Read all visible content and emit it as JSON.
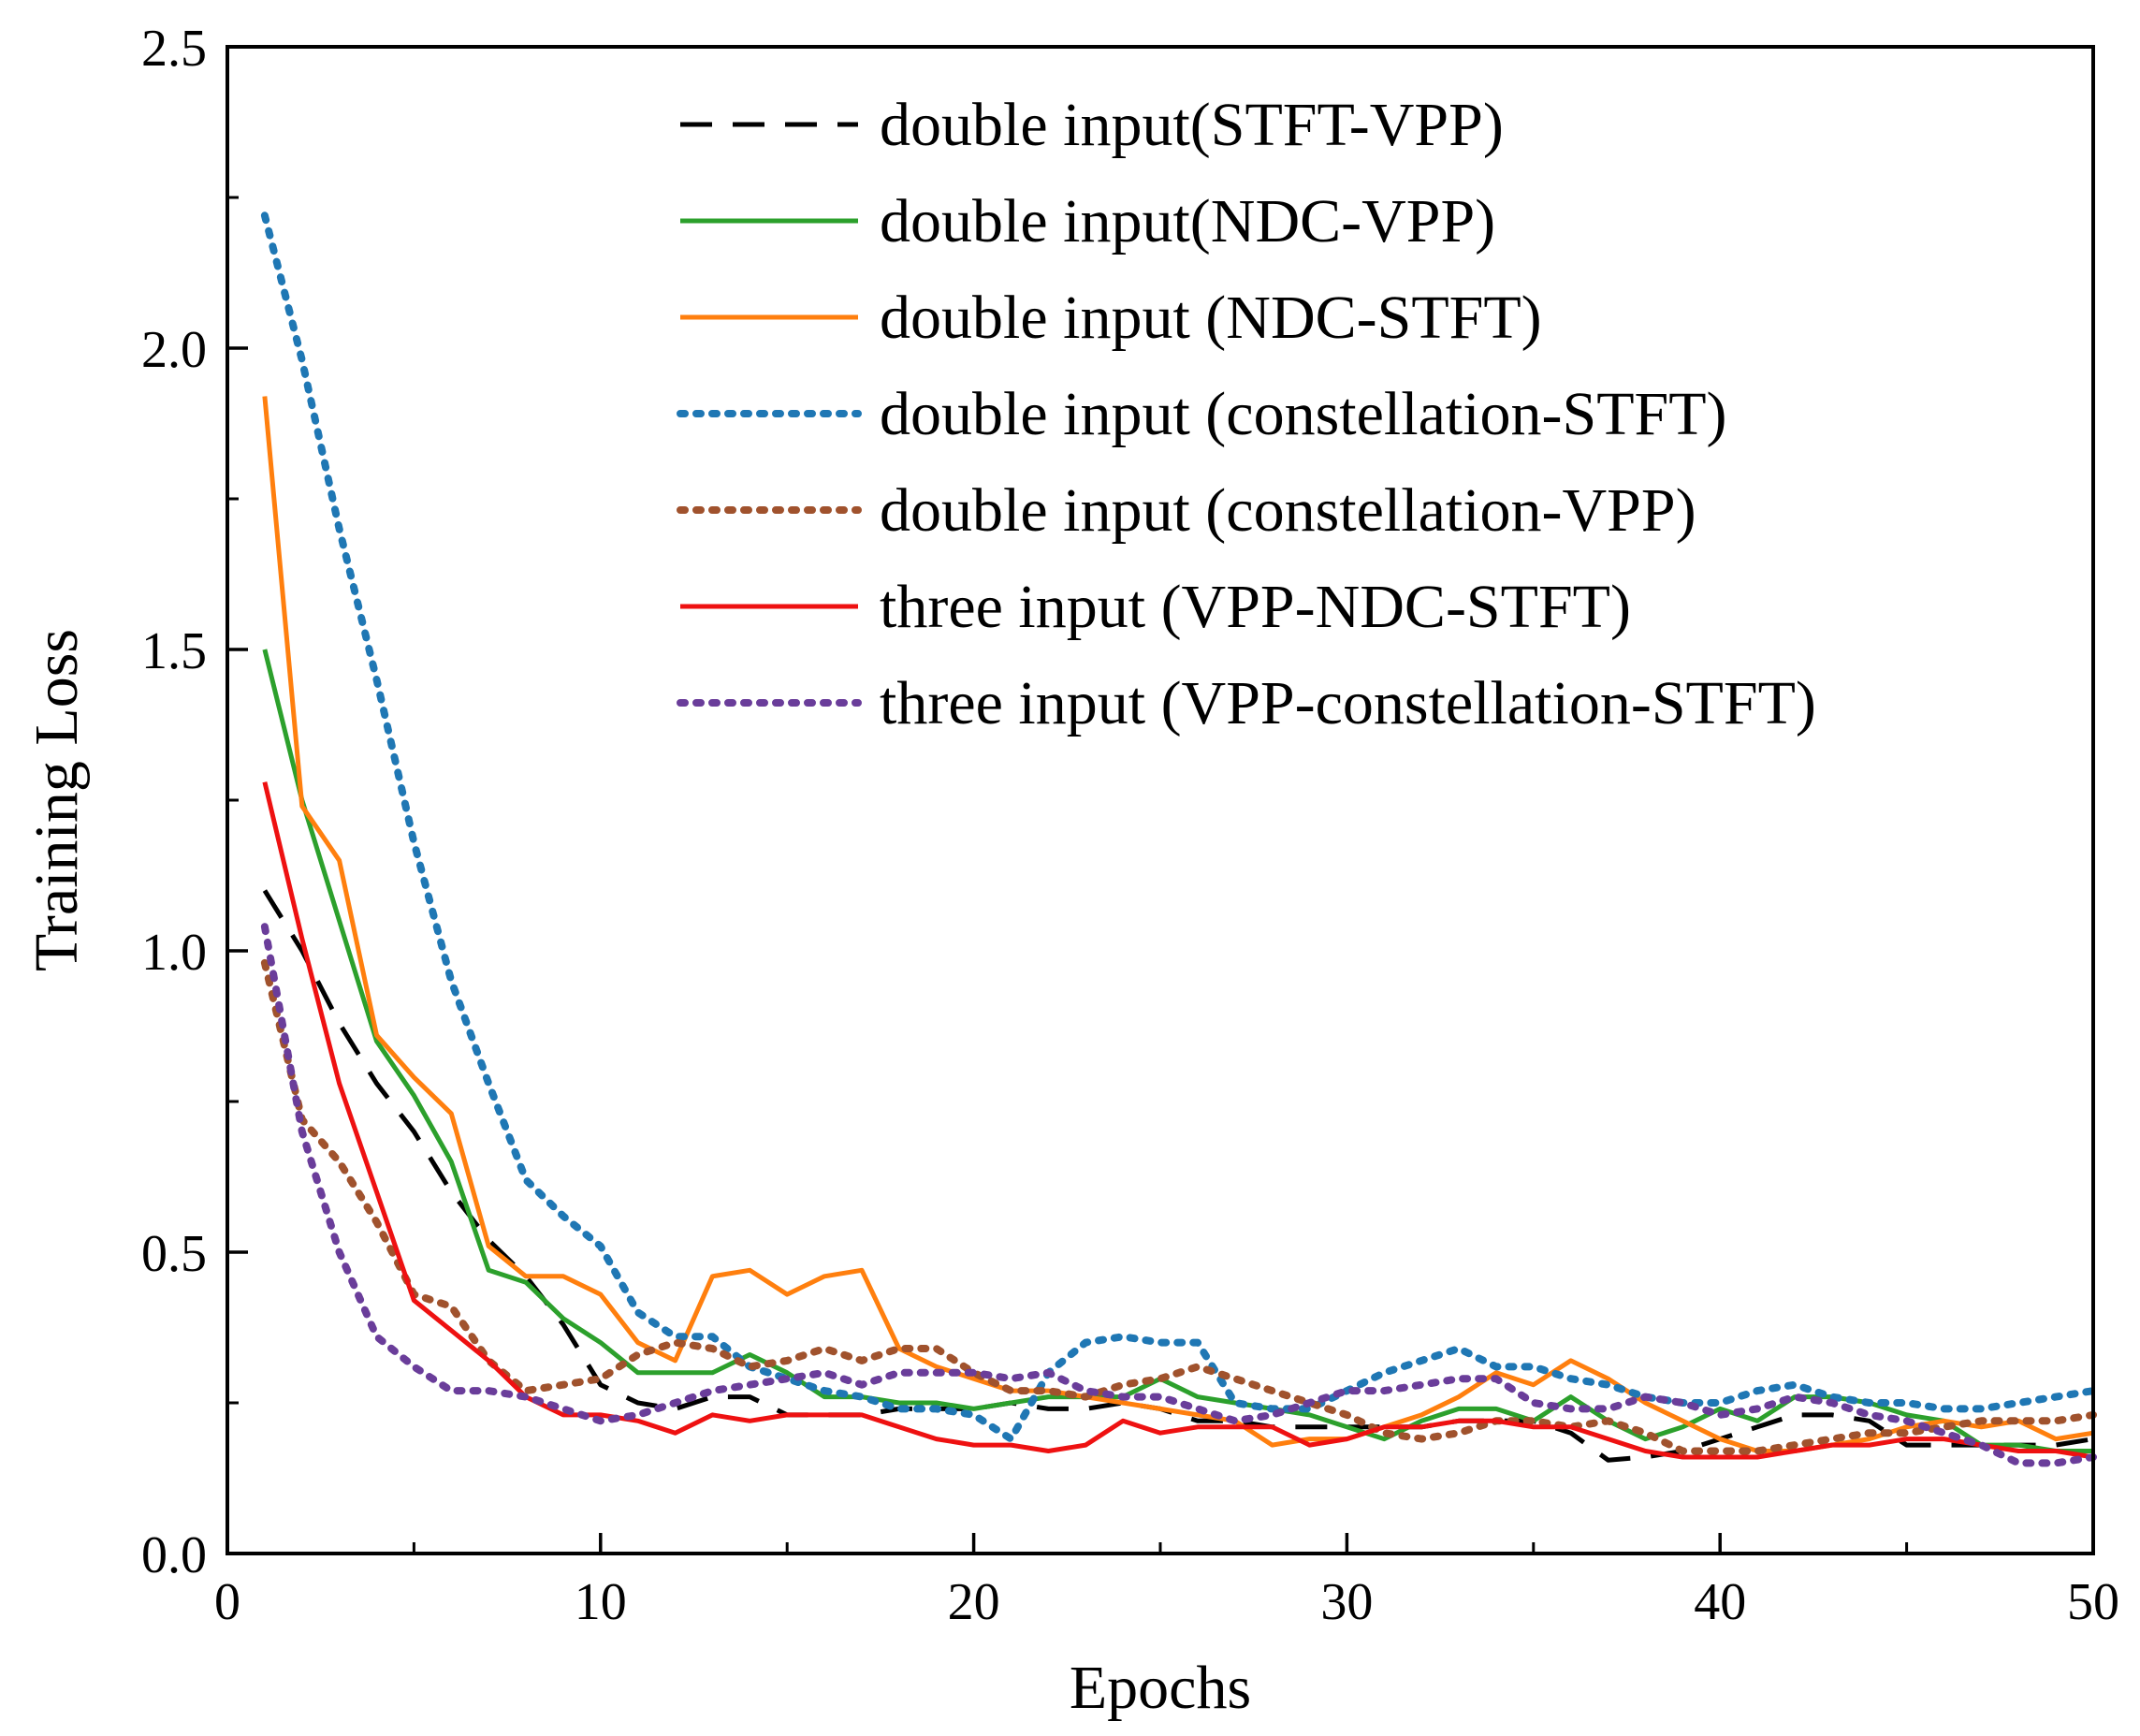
{
  "chart_data": {
    "type": "line",
    "title": "",
    "xlabel": "Epochs",
    "ylabel": "Training Loss",
    "xlim": [
      0,
      50
    ],
    "ylim": [
      0,
      2.5
    ],
    "xticks": [
      0,
      10,
      20,
      30,
      40,
      50
    ],
    "yticks": [
      0.0,
      0.5,
      1.0,
      1.5,
      2.0,
      2.5
    ],
    "xtick_labels": [
      "0",
      "10",
      "20",
      "30",
      "40",
      "50"
    ],
    "ytick_labels": [
      "0.0",
      "0.5",
      "1.0",
      "1.5",
      "2.0",
      "2.5"
    ],
    "legend_position": "top-right",
    "grid": false,
    "series": [
      {
        "name": "double input(STFT-VPP)",
        "color": "#000000",
        "style": "dashed",
        "x": [
          1,
          2,
          3,
          4,
          5,
          6,
          7,
          8,
          9,
          10,
          11,
          12,
          13,
          14,
          15,
          16,
          17,
          18,
          19,
          20,
          21,
          22,
          23,
          24,
          25,
          26,
          27,
          28,
          29,
          30,
          31,
          32,
          33,
          34,
          35,
          36,
          37,
          38,
          39,
          40,
          41,
          42,
          43,
          44,
          45,
          46,
          47,
          48,
          49,
          50
        ],
        "values": [
          1.1,
          1.0,
          0.88,
          0.78,
          0.7,
          0.6,
          0.52,
          0.46,
          0.38,
          0.28,
          0.25,
          0.24,
          0.26,
          0.26,
          0.23,
          0.23,
          0.23,
          0.24,
          0.24,
          0.24,
          0.25,
          0.24,
          0.24,
          0.25,
          0.24,
          0.22,
          0.22,
          0.21,
          0.21,
          0.21,
          0.21,
          0.21,
          0.22,
          0.22,
          0.22,
          0.2,
          0.155,
          0.16,
          0.17,
          0.19,
          0.21,
          0.23,
          0.23,
          0.22,
          0.18,
          0.18,
          0.18,
          0.18,
          0.18,
          0.19
        ]
      },
      {
        "name": "double input(NDC-VPP)",
        "color": "#2ca02c",
        "style": "solid",
        "x": [
          1,
          2,
          3,
          4,
          5,
          6,
          7,
          8,
          9,
          10,
          11,
          12,
          13,
          14,
          15,
          16,
          17,
          18,
          19,
          20,
          21,
          22,
          23,
          24,
          25,
          26,
          27,
          28,
          29,
          30,
          31,
          32,
          33,
          34,
          35,
          36,
          37,
          38,
          39,
          40,
          41,
          42,
          43,
          44,
          45,
          46,
          47,
          48,
          49,
          50
        ],
        "values": [
          1.5,
          1.25,
          1.05,
          0.85,
          0.76,
          0.65,
          0.47,
          0.45,
          0.39,
          0.35,
          0.3,
          0.3,
          0.3,
          0.33,
          0.3,
          0.26,
          0.26,
          0.25,
          0.25,
          0.24,
          0.25,
          0.26,
          0.26,
          0.26,
          0.29,
          0.26,
          0.25,
          0.24,
          0.23,
          0.21,
          0.19,
          0.22,
          0.24,
          0.24,
          0.22,
          0.26,
          0.22,
          0.19,
          0.21,
          0.24,
          0.22,
          0.26,
          0.26,
          0.25,
          0.23,
          0.22,
          0.18,
          0.18,
          0.17,
          0.17
        ]
      },
      {
        "name": "double input (NDC-STFT)",
        "color": "#ff7f0e",
        "style": "solid",
        "x": [
          1,
          2,
          3,
          4,
          5,
          6,
          7,
          8,
          9,
          10,
          11,
          12,
          13,
          14,
          15,
          16,
          17,
          18,
          19,
          20,
          21,
          22,
          23,
          24,
          25,
          26,
          27,
          28,
          29,
          30,
          31,
          32,
          33,
          34,
          35,
          36,
          37,
          38,
          39,
          40,
          41,
          42,
          43,
          44,
          45,
          46,
          47,
          48,
          49,
          50
        ],
        "values": [
          1.92,
          1.24,
          1.15,
          0.86,
          0.79,
          0.73,
          0.51,
          0.46,
          0.46,
          0.43,
          0.35,
          0.32,
          0.46,
          0.47,
          0.43,
          0.46,
          0.47,
          0.34,
          0.31,
          0.29,
          0.27,
          0.27,
          0.26,
          0.25,
          0.24,
          0.23,
          0.22,
          0.18,
          0.19,
          0.19,
          0.21,
          0.23,
          0.26,
          0.3,
          0.28,
          0.32,
          0.29,
          0.25,
          0.22,
          0.19,
          0.17,
          0.17,
          0.18,
          0.19,
          0.21,
          0.22,
          0.21,
          0.22,
          0.19,
          0.2
        ]
      },
      {
        "name": "double input (constellation-STFT)",
        "color": "#1f77b4",
        "style": "dotted",
        "x": [
          1,
          2,
          3,
          4,
          5,
          6,
          7,
          8,
          9,
          10,
          11,
          12,
          13,
          14,
          15,
          16,
          17,
          18,
          19,
          20,
          21,
          22,
          23,
          24,
          25,
          26,
          27,
          28,
          29,
          30,
          31,
          32,
          33,
          34,
          35,
          36,
          37,
          38,
          39,
          40,
          41,
          42,
          43,
          44,
          45,
          46,
          47,
          48,
          49,
          50
        ],
        "values": [
          2.22,
          1.98,
          1.7,
          1.45,
          1.18,
          0.95,
          0.78,
          0.62,
          0.56,
          0.51,
          0.4,
          0.36,
          0.36,
          0.31,
          0.29,
          0.27,
          0.26,
          0.24,
          0.24,
          0.23,
          0.19,
          0.3,
          0.35,
          0.36,
          0.35,
          0.35,
          0.25,
          0.24,
          0.24,
          0.27,
          0.3,
          0.32,
          0.34,
          0.31,
          0.31,
          0.29,
          0.28,
          0.26,
          0.25,
          0.25,
          0.27,
          0.28,
          0.26,
          0.25,
          0.25,
          0.24,
          0.24,
          0.25,
          0.26,
          0.27
        ]
      },
      {
        "name": "double input (constellation-VPP)",
        "color": "#a0522d",
        "style": "dotted",
        "x": [
          1,
          2,
          3,
          4,
          5,
          6,
          7,
          8,
          9,
          10,
          11,
          12,
          13,
          14,
          15,
          16,
          17,
          18,
          19,
          20,
          21,
          22,
          23,
          24,
          25,
          26,
          27,
          28,
          29,
          30,
          31,
          32,
          33,
          34,
          35,
          36,
          37,
          38,
          39,
          40,
          41,
          42,
          43,
          44,
          45,
          46,
          47,
          48,
          49,
          50
        ],
        "values": [
          0.98,
          0.72,
          0.65,
          0.55,
          0.43,
          0.41,
          0.32,
          0.27,
          0.28,
          0.29,
          0.33,
          0.35,
          0.34,
          0.31,
          0.32,
          0.34,
          0.32,
          0.34,
          0.34,
          0.3,
          0.27,
          0.27,
          0.26,
          0.28,
          0.29,
          0.31,
          0.29,
          0.27,
          0.25,
          0.23,
          0.2,
          0.19,
          0.2,
          0.22,
          0.22,
          0.21,
          0.22,
          0.2,
          0.17,
          0.17,
          0.17,
          0.18,
          0.19,
          0.2,
          0.2,
          0.21,
          0.22,
          0.22,
          0.22,
          0.23
        ]
      },
      {
        "name": "three input (VPP-NDC-STFT)",
        "color": "#ee1111",
        "style": "solid",
        "x": [
          1,
          2,
          3,
          4,
          5,
          6,
          7,
          8,
          9,
          10,
          11,
          12,
          13,
          14,
          15,
          16,
          17,
          18,
          19,
          20,
          21,
          22,
          23,
          24,
          25,
          26,
          27,
          28,
          29,
          30,
          31,
          32,
          33,
          34,
          35,
          36,
          37,
          38,
          39,
          40,
          41,
          42,
          43,
          44,
          45,
          46,
          47,
          48,
          49,
          50
        ],
        "values": [
          1.28,
          1.02,
          0.78,
          0.6,
          0.42,
          0.37,
          0.32,
          0.26,
          0.23,
          0.23,
          0.22,
          0.2,
          0.23,
          0.22,
          0.23,
          0.23,
          0.23,
          0.21,
          0.19,
          0.18,
          0.18,
          0.17,
          0.18,
          0.22,
          0.2,
          0.21,
          0.21,
          0.21,
          0.18,
          0.19,
          0.21,
          0.21,
          0.22,
          0.22,
          0.21,
          0.21,
          0.19,
          0.17,
          0.16,
          0.16,
          0.16,
          0.17,
          0.18,
          0.18,
          0.19,
          0.19,
          0.18,
          0.17,
          0.17,
          0.16
        ]
      },
      {
        "name": "three input (VPP-constellation-STFT)",
        "color": "#6a3d9a",
        "style": "dotted",
        "x": [
          1,
          2,
          3,
          4,
          5,
          6,
          7,
          8,
          9,
          10,
          11,
          12,
          13,
          14,
          15,
          16,
          17,
          18,
          19,
          20,
          21,
          22,
          23,
          24,
          25,
          26,
          27,
          28,
          29,
          30,
          31,
          32,
          33,
          34,
          35,
          36,
          37,
          38,
          39,
          40,
          41,
          42,
          43,
          44,
          45,
          46,
          47,
          48,
          49,
          50
        ],
        "values": [
          1.04,
          0.7,
          0.5,
          0.36,
          0.31,
          0.27,
          0.27,
          0.26,
          0.24,
          0.22,
          0.23,
          0.25,
          0.27,
          0.28,
          0.29,
          0.3,
          0.28,
          0.3,
          0.3,
          0.3,
          0.29,
          0.3,
          0.27,
          0.26,
          0.26,
          0.24,
          0.22,
          0.23,
          0.25,
          0.27,
          0.27,
          0.28,
          0.29,
          0.29,
          0.25,
          0.24,
          0.24,
          0.26,
          0.25,
          0.23,
          0.24,
          0.26,
          0.25,
          0.23,
          0.22,
          0.2,
          0.18,
          0.15,
          0.15,
          0.16
        ]
      }
    ]
  }
}
